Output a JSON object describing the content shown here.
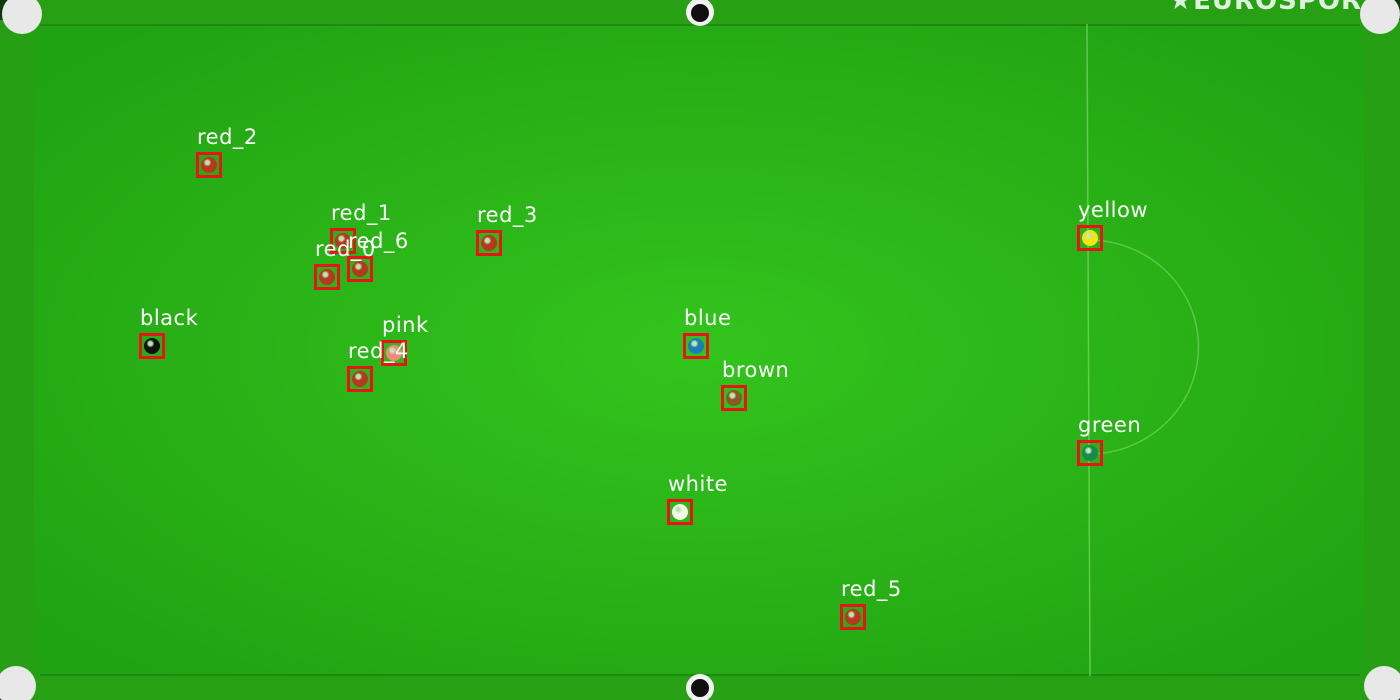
{
  "broadcaster_watermark": "★EUROSPOR",
  "colors": {
    "felt": "#2fbe1a",
    "cushion": "#27a014",
    "rail": "#0d3b09",
    "marker_box": "#e8141a",
    "label_text": "#ffffff"
  },
  "balls": [
    {
      "label": "red_2",
      "color": "#b5381f"
    },
    {
      "label": "red_1",
      "color": "#b5381f"
    },
    {
      "label": "red_6",
      "color": "#b5381f"
    },
    {
      "label": "red_0",
      "color": "#b5381f"
    },
    {
      "label": "red_3",
      "color": "#b5381f"
    },
    {
      "label": "yellow",
      "color": "#f5e414"
    },
    {
      "label": "black",
      "color": "#111111"
    },
    {
      "label": "pink",
      "color": "#f08a7a"
    },
    {
      "label": "red_4",
      "color": "#b5381f"
    },
    {
      "label": "blue",
      "color": "#1f7ab8"
    },
    {
      "label": "brown",
      "color": "#8a5a26"
    },
    {
      "label": "green",
      "color": "#1a8a4a"
    },
    {
      "label": "white",
      "color": "#f7f7ea"
    },
    {
      "label": "red_5",
      "color": "#b5381f"
    }
  ]
}
